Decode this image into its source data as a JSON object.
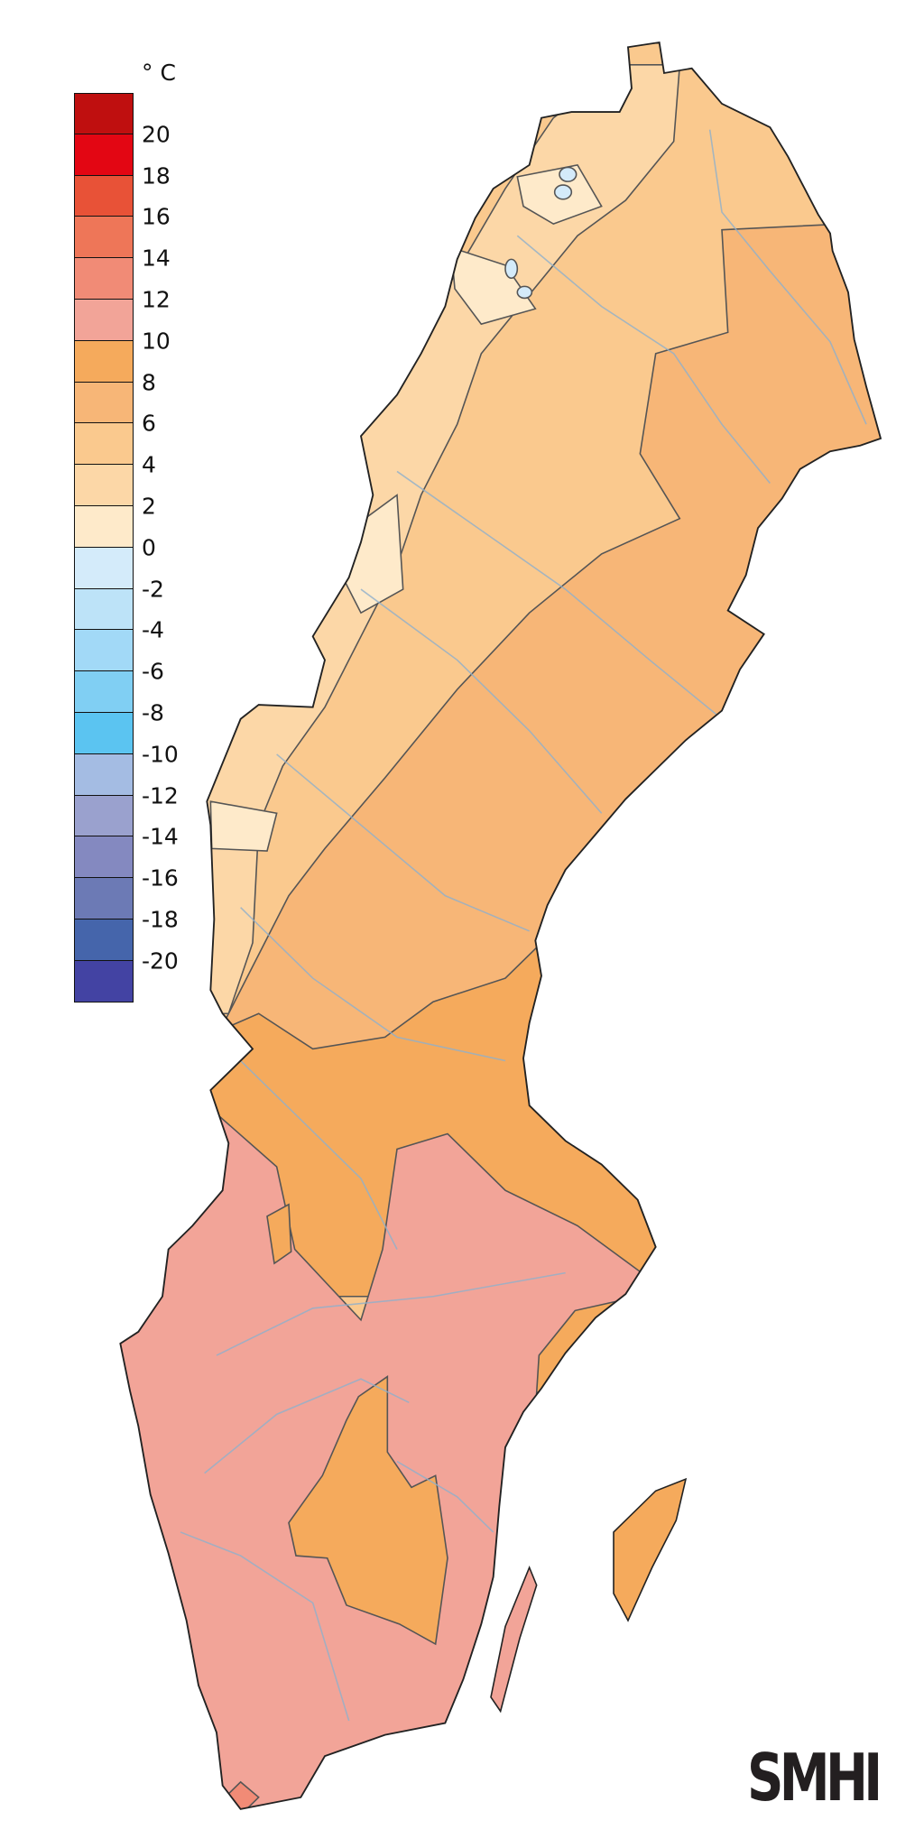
{
  "legend": {
    "unit": "° C",
    "labels": [
      "20",
      "18",
      "16",
      "14",
      "12",
      "10",
      "8",
      "6",
      "4",
      "2",
      "0",
      "-2",
      "-4",
      "-6",
      "-8",
      "-10",
      "-12",
      "-14",
      "-16",
      "-18",
      "-20"
    ],
    "bin_colors": [
      "#bf0f0f",
      "#e30613",
      "#e85237",
      "#ee7658",
      "#f18b76",
      "#f2a498",
      "#f5aa5c",
      "#f7b677",
      "#fac98e",
      "#fcd7a7",
      "#feeaca",
      "#d4ebfa",
      "#bde3f8",
      "#a2d9f7",
      "#80cff3",
      "#5bc4f1",
      "#a4bce3",
      "#9aa1ce",
      "#8489c0",
      "#6c7ab5",
      "#4565ab",
      "#4343a3"
    ]
  },
  "map": {
    "colors": {
      "zone_0_2": "#feeaca",
      "zone_2_4": "#fcd7a7",
      "zone_4_6": "#fac98e",
      "zone_6_8": "#f7b677",
      "zone_8_10": "#f5aa5c",
      "zone_10_12": "#f2a498",
      "zone_12_14": "#f18b76",
      "zone_below_0": "#d4ebfa",
      "rivers": "#8fb0cc",
      "outline": "#222222"
    }
  },
  "logo": {
    "text": "SMHI"
  }
}
